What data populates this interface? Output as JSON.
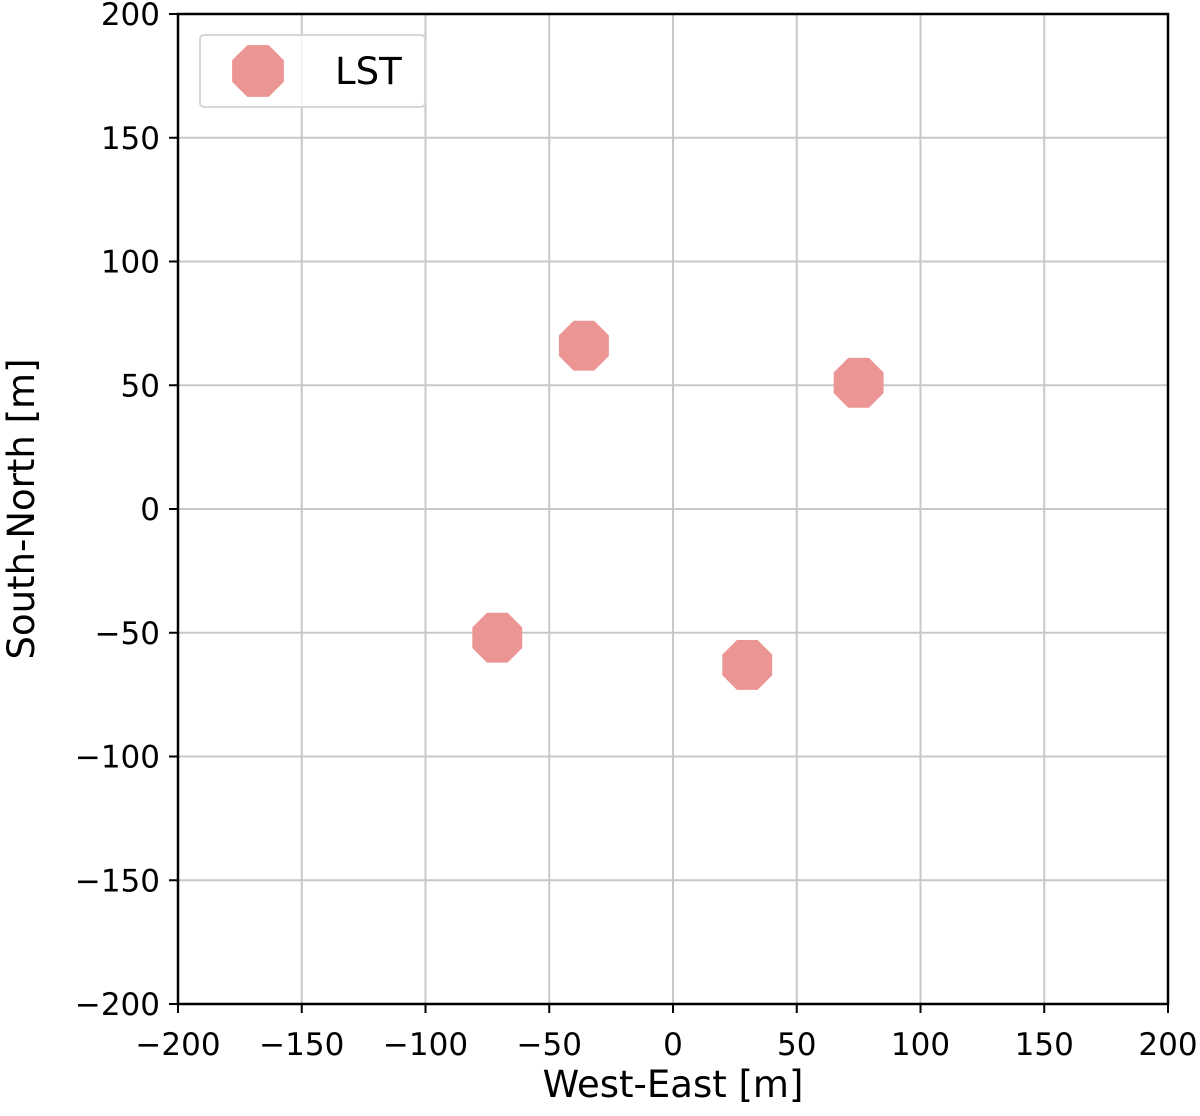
{
  "chart_data": {
    "type": "scatter",
    "title": "",
    "xlabel": "West-East [m]",
    "ylabel": "South-North [m]",
    "xlim": [
      -200,
      200
    ],
    "ylim": [
      -200,
      200
    ],
    "xticks": [
      -200,
      -150,
      -100,
      -50,
      0,
      50,
      100,
      150,
      200
    ],
    "yticks": [
      -200,
      -150,
      -100,
      -50,
      0,
      50,
      100,
      150,
      200
    ],
    "xtick_labels": [
      "−200",
      "−150",
      "−100",
      "−50",
      "0",
      "50",
      "100",
      "150",
      "200"
    ],
    "ytick_labels": [
      "−200",
      "−150",
      "−100",
      "−50",
      "0",
      "50",
      "100",
      "150",
      "200"
    ],
    "grid": true,
    "legend_position": "top-left",
    "series": [
      {
        "name": "LST",
        "color": "#eb9594",
        "marker": "octagon",
        "points": [
          {
            "x": -36,
            "y": 66
          },
          {
            "x": 75,
            "y": 51
          },
          {
            "x": -71,
            "y": -52
          },
          {
            "x": 30,
            "y": -63
          }
        ]
      }
    ]
  }
}
